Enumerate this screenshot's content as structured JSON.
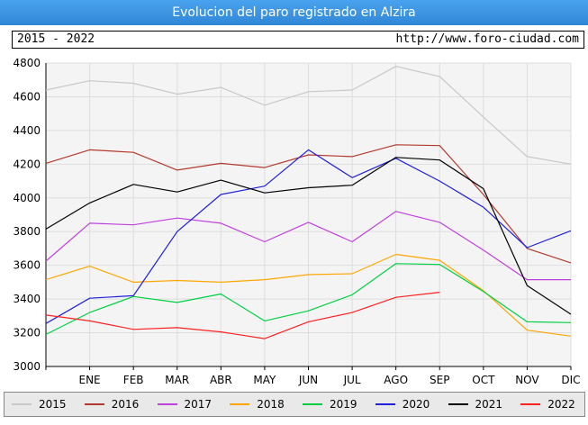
{
  "header": {
    "title": "Evolucion del paro registrado en Alzira",
    "period": "2015 - 2022",
    "url": "http://www.foro-ciudad.com"
  },
  "chart_data": {
    "type": "line",
    "x": [
      "",
      "ENE",
      "FEB",
      "MAR",
      "ABR",
      "MAY",
      "JUN",
      "JUL",
      "AGO",
      "SEP",
      "OCT",
      "NOV",
      "DIC"
    ],
    "ylim": [
      3000,
      4800
    ],
    "yticks": [
      3000,
      3200,
      3400,
      3600,
      3800,
      4000,
      4200,
      4400,
      4600,
      4800
    ],
    "grid": true,
    "legend_position": "bottom",
    "series": [
      {
        "name": "2015",
        "color": "#c8c8c8",
        "values": [
          4640,
          4695,
          4680,
          4615,
          4655,
          4550,
          4630,
          4640,
          4780,
          4720,
          4480,
          4245,
          4200
        ]
      },
      {
        "name": "2016",
        "color": "#b33a2e",
        "values": [
          4205,
          4285,
          4270,
          4165,
          4205,
          4180,
          4255,
          4245,
          4315,
          4310,
          4020,
          3700,
          3615
        ]
      },
      {
        "name": "2017",
        "color": "#c040dd",
        "values": [
          3625,
          3850,
          3840,
          3880,
          3850,
          3740,
          3855,
          3740,
          3920,
          3855,
          3690,
          3515,
          3515
        ]
      },
      {
        "name": "2018",
        "color": "#ffa500",
        "values": [
          3515,
          3595,
          3500,
          3510,
          3500,
          3515,
          3545,
          3550,
          3665,
          3630,
          3450,
          3215,
          3180
        ]
      },
      {
        "name": "2019",
        "color": "#00d040",
        "values": [
          3190,
          3320,
          3415,
          3380,
          3430,
          3270,
          3330,
          3425,
          3610,
          3605,
          3445,
          3265,
          3260
        ]
      },
      {
        "name": "2020",
        "color": "#2020dd",
        "values": [
          3255,
          3405,
          3420,
          3800,
          4020,
          4070,
          4285,
          4120,
          4235,
          4100,
          3945,
          3705,
          3805
        ]
      },
      {
        "name": "2021",
        "color": "#000000",
        "values": [
          3815,
          3970,
          4080,
          4035,
          4105,
          4030,
          4060,
          4075,
          4240,
          4225,
          4055,
          3480,
          3310
        ]
      },
      {
        "name": "2022",
        "color": "#ff2020",
        "values": [
          3305,
          3270,
          3220,
          3230,
          3205,
          3165,
          3265,
          3320,
          3410,
          3440,
          null,
          null,
          null
        ]
      }
    ]
  }
}
